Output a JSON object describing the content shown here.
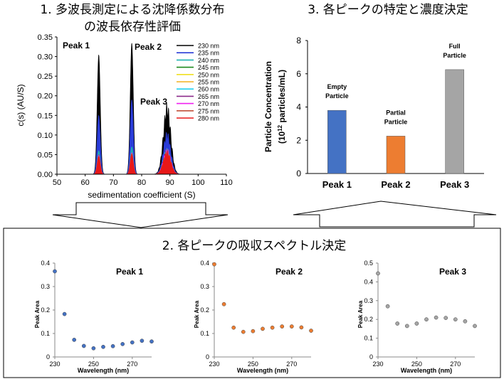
{
  "titles": {
    "panel1_line1": "1. 多波長測定による沈降係数分布",
    "panel1_line2": "の波長依存性評価",
    "panel3": "3. 各ピークの特定と濃度決定",
    "panel2": "2. 各ピークの吸収スペクトル決定"
  },
  "chart_data": [
    {
      "type": "area",
      "xlabel": "sedimentation coefficient (S)",
      "ylabel": "c(s) (AU/S)",
      "xlim": [
        50,
        110
      ],
      "ylim": [
        0,
        0.35
      ],
      "xticks": [
        "50",
        "60",
        "70",
        "80",
        "90",
        "100",
        "110"
      ],
      "yticks": [
        "0.00",
        "0.05",
        "0.10",
        "0.15",
        "0.20",
        "0.25",
        "0.30",
        "0.35"
      ],
      "annotations": [
        "Peak 1",
        "Peak 2",
        "Peak 3"
      ],
      "peaks": [
        {
          "center": 64.8,
          "width": 0.55
        },
        {
          "center": 76.5,
          "width": 0.55
        },
        {
          "center": 89.0,
          "width": 1.3
        }
      ],
      "series": [
        {
          "name": "230 nm",
          "color": "#000000",
          "heights": [
            0.305,
            0.335,
            0.165
          ]
        },
        {
          "name": "235 nm",
          "color": "#2a3cd8",
          "heights": [
            0.15,
            0.19,
            0.098
          ]
        },
        {
          "name": "240 nm",
          "color": "#1fb3b3",
          "heights": [
            0.06,
            0.07,
            0.06
          ]
        },
        {
          "name": "245 nm",
          "color": "#1e8a1e",
          "heights": [
            0.05,
            0.055,
            0.055
          ]
        },
        {
          "name": "250 nm",
          "color": "#f0e020",
          "heights": [
            0.045,
            0.05,
            0.05
          ]
        },
        {
          "name": "255 nm",
          "color": "#f2b020",
          "heights": [
            0.045,
            0.05,
            0.052
          ]
        },
        {
          "name": "260 nm",
          "color": "#20d0f0",
          "heights": [
            0.05,
            0.055,
            0.06
          ]
        },
        {
          "name": "265 nm",
          "color": "#8a2a8a",
          "heights": [
            0.05,
            0.055,
            0.06
          ]
        },
        {
          "name": "270 nm",
          "color": "#f020f0",
          "heights": [
            0.048,
            0.055,
            0.058
          ]
        },
        {
          "name": "275 nm",
          "color": "#c0503a",
          "heights": [
            0.046,
            0.053,
            0.055
          ]
        },
        {
          "name": "280 nm",
          "color": "#e81818",
          "heights": [
            0.045,
            0.05,
            0.052
          ]
        }
      ]
    },
    {
      "type": "bar",
      "ylabel_line1": "Particle Concentration",
      "ylabel_line2_pre": "(10",
      "ylabel_line2_sup": "12",
      "ylabel_line2_post": " particles/mL)",
      "ylim": [
        0,
        8
      ],
      "yticks": [
        "0",
        "2",
        "4",
        "6",
        "8"
      ],
      "categories": [
        "Peak 1",
        "Peak 2",
        "Peak 3"
      ],
      "values": [
        3.8,
        2.25,
        6.25
      ],
      "colors": [
        "#4472c4",
        "#ed7d31",
        "#a5a5a5"
      ],
      "labels": [
        [
          "Empty",
          "Particle"
        ],
        [
          "Partial",
          "Particle"
        ],
        [
          "Full",
          "Particle"
        ]
      ]
    },
    {
      "type": "scatter",
      "title": "Peak 1",
      "xlabel": "Wavelength (nm)",
      "ylabel": "Peak Area",
      "xlim": [
        230,
        280
      ],
      "ylim": [
        0,
        0.4
      ],
      "xticks": [
        "230",
        "250",
        "270"
      ],
      "yticks": [
        "0",
        "0.1",
        "0.2",
        "0.3",
        "0.4"
      ],
      "color": "#4472c4",
      "x": [
        230,
        235,
        240,
        245,
        250,
        255,
        260,
        265,
        270,
        275,
        280
      ],
      "y": [
        0.365,
        0.183,
        0.073,
        0.047,
        0.037,
        0.043,
        0.046,
        0.055,
        0.062,
        0.069,
        0.066
      ]
    },
    {
      "type": "scatter",
      "title": "Peak 2",
      "xlabel": "Wavelength (nm)",
      "ylabel": "Peak Area",
      "xlim": [
        230,
        280
      ],
      "ylim": [
        0,
        0.4
      ],
      "xticks": [
        "230",
        "250",
        "270"
      ],
      "yticks": [
        "0",
        "0.1",
        "0.2",
        "0.3",
        "0.4"
      ],
      "color": "#ed7d31",
      "x": [
        230,
        235,
        240,
        245,
        250,
        255,
        260,
        265,
        270,
        275,
        280
      ],
      "y": [
        0.395,
        0.225,
        0.125,
        0.107,
        0.11,
        0.12,
        0.125,
        0.13,
        0.13,
        0.126,
        0.112
      ]
    },
    {
      "type": "scatter",
      "title": "Peak 3",
      "xlabel": "Wavelength (nm)",
      "ylabel": "Peak Area",
      "xlim": [
        230,
        280
      ],
      "ylim": [
        0,
        0.5
      ],
      "xticks": [
        "230",
        "250",
        "270"
      ],
      "yticks": [
        "0",
        "0.1",
        "0.2",
        "0.3",
        "0.4",
        "0.5"
      ],
      "color": "#a5a5a5",
      "x": [
        230,
        235,
        240,
        245,
        250,
        255,
        260,
        265,
        270,
        275,
        280
      ],
      "y": [
        0.445,
        0.27,
        0.178,
        0.165,
        0.178,
        0.2,
        0.21,
        0.208,
        0.2,
        0.19,
        0.165
      ]
    }
  ]
}
